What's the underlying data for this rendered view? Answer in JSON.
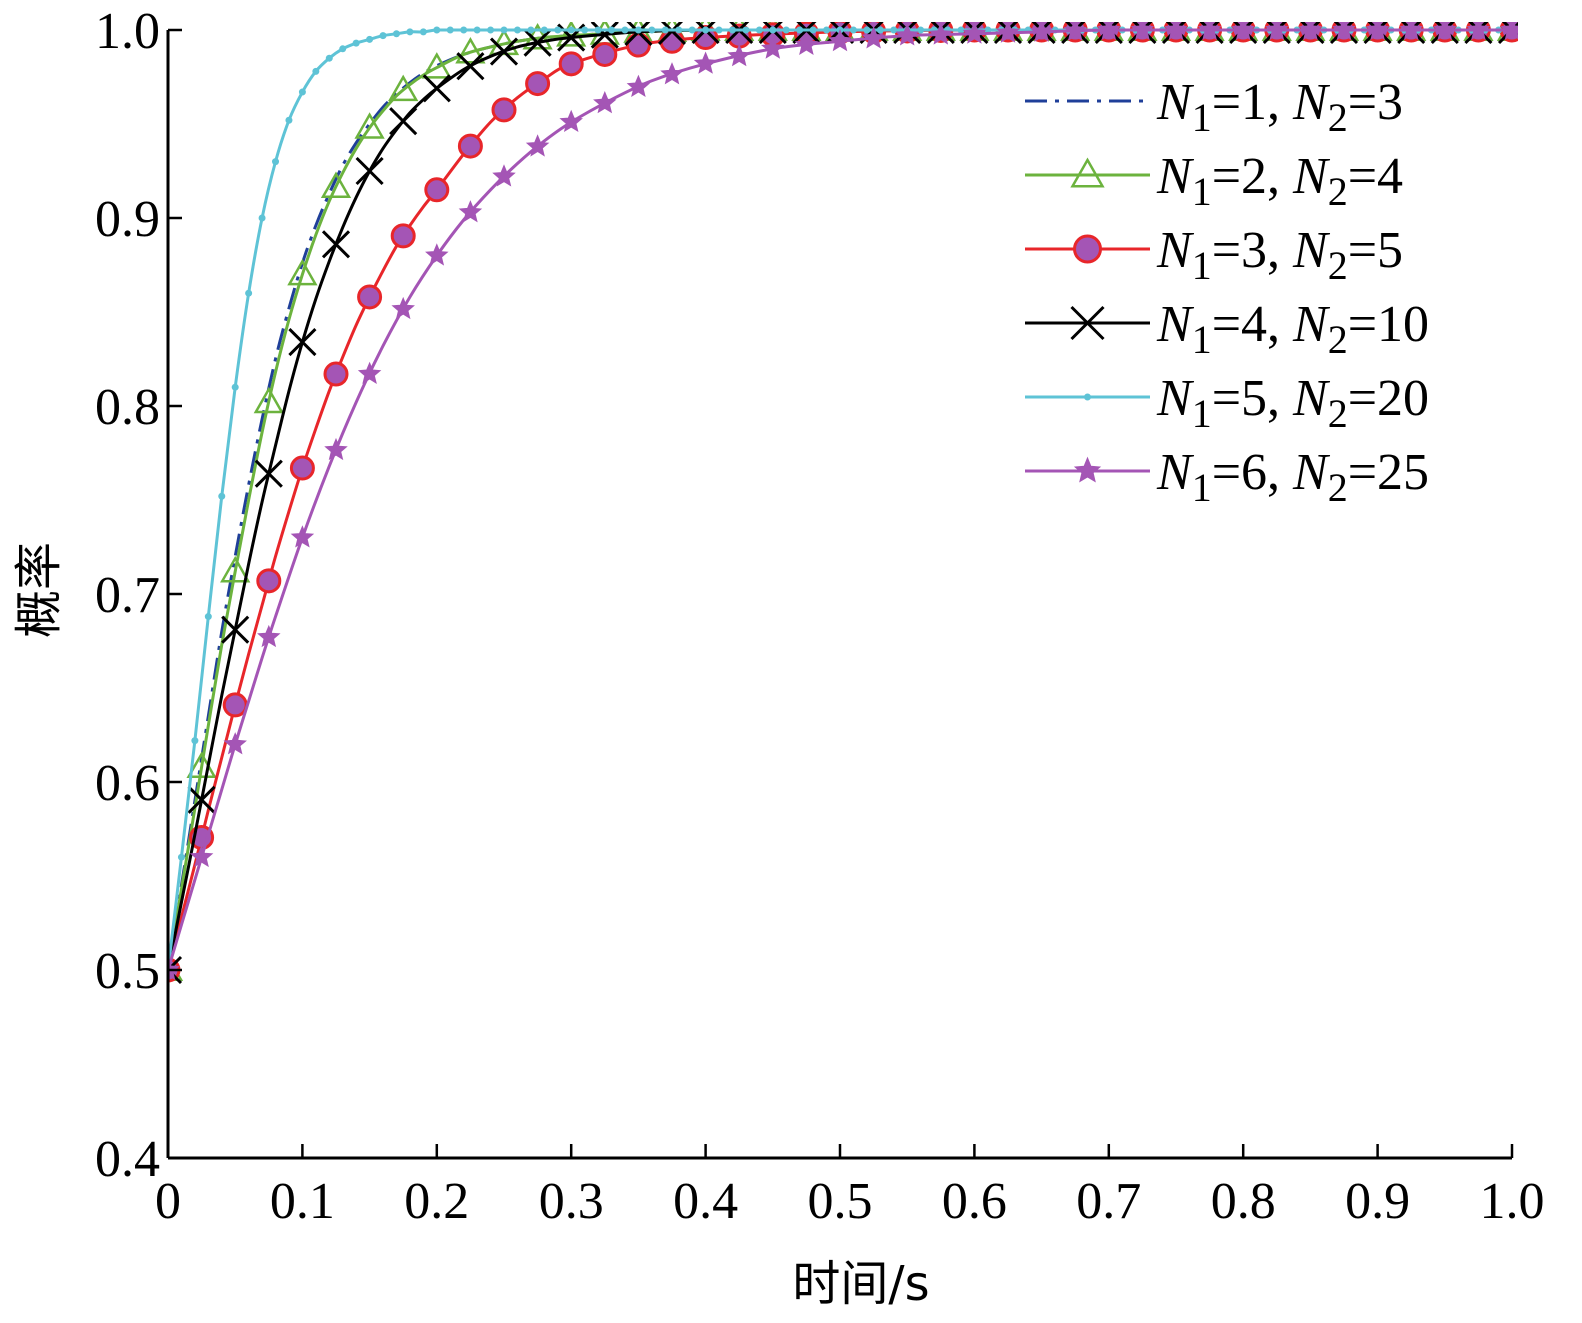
{
  "chart_data": {
    "type": "line",
    "title": "",
    "xlabel": "时间/s",
    "ylabel": "概率",
    "xlim": [
      0,
      1.0
    ],
    "ylim": [
      0.4,
      1.0
    ],
    "x_ticks": [
      "0",
      "0.1",
      "0.2",
      "0.3",
      "0.4",
      "0.5",
      "0.6",
      "0.7",
      "0.8",
      "0.9",
      "1.0"
    ],
    "y_ticks": [
      "0.4",
      "0.5",
      "0.6",
      "0.7",
      "0.8",
      "0.9",
      "1.0"
    ],
    "grid": false,
    "legend_position": "top-right",
    "series": [
      {
        "name": "N1=1, N2=3",
        "legend": {
          "n1": "1",
          "n2": "3"
        },
        "color": "#1f3f99",
        "line_style": "dashdot",
        "marker": "none",
        "x": [
          0,
          0.01,
          0.02,
          0.03,
          0.04,
          0.05,
          0.06,
          0.07,
          0.08,
          0.09,
          0.1,
          0.11,
          0.12,
          0.13,
          0.14,
          0.15,
          0.16,
          0.17,
          0.18,
          0.19,
          0.2,
          0.22,
          0.24,
          0.26,
          0.28,
          0.3,
          0.35,
          0.4,
          0.5,
          0.6,
          0.7,
          0.8,
          0.9,
          1.0
        ],
        "y": [
          0.5,
          0.545,
          0.59,
          0.635,
          0.68,
          0.72,
          0.758,
          0.793,
          0.825,
          0.852,
          0.876,
          0.896,
          0.913,
          0.928,
          0.94,
          0.95,
          0.959,
          0.966,
          0.972,
          0.977,
          0.981,
          0.987,
          0.991,
          0.994,
          0.996,
          0.997,
          0.999,
          1.0,
          1.0,
          1.0,
          1.0,
          1.0,
          1.0,
          1.0
        ]
      },
      {
        "name": "N1=2, N2=4",
        "legend": {
          "n1": "2",
          "n2": "4"
        },
        "color": "#6cb33e",
        "line_style": "solid",
        "marker": "triangle",
        "x": [
          0,
          0.01,
          0.02,
          0.03,
          0.04,
          0.05,
          0.06,
          0.07,
          0.08,
          0.09,
          0.1,
          0.11,
          0.12,
          0.13,
          0.14,
          0.15,
          0.16,
          0.17,
          0.18,
          0.19,
          0.2,
          0.22,
          0.24,
          0.26,
          0.28,
          0.3,
          0.35,
          0.4,
          0.5,
          0.6,
          0.7,
          0.8,
          0.9,
          1.0
        ],
        "y": [
          0.5,
          0.543,
          0.586,
          0.63,
          0.673,
          0.712,
          0.75,
          0.786,
          0.818,
          0.846,
          0.87,
          0.891,
          0.909,
          0.924,
          0.937,
          0.948,
          0.957,
          0.965,
          0.971,
          0.976,
          0.98,
          0.987,
          0.991,
          0.994,
          0.996,
          0.997,
          0.999,
          1.0,
          1.0,
          1.0,
          1.0,
          1.0,
          1.0,
          1.0
        ]
      },
      {
        "name": "N1=3, N2=5",
        "legend": {
          "n1": "3",
          "n2": "5"
        },
        "color": "#e8262a",
        "line_style": "solid",
        "marker": "circle",
        "x": [
          0,
          0.01,
          0.02,
          0.03,
          0.04,
          0.05,
          0.06,
          0.07,
          0.08,
          0.09,
          0.1,
          0.11,
          0.12,
          0.13,
          0.14,
          0.15,
          0.16,
          0.17,
          0.18,
          0.19,
          0.2,
          0.22,
          0.24,
          0.26,
          0.28,
          0.3,
          0.35,
          0.4,
          0.5,
          0.6,
          0.7,
          0.8,
          0.9,
          1.0
        ],
        "y": [
          0.5,
          0.528,
          0.556,
          0.585,
          0.613,
          0.641,
          0.668,
          0.694,
          0.72,
          0.744,
          0.767,
          0.788,
          0.808,
          0.826,
          0.843,
          0.858,
          0.872,
          0.885,
          0.896,
          0.906,
          0.915,
          0.934,
          0.951,
          0.964,
          0.974,
          0.982,
          0.992,
          0.996,
          0.999,
          1.0,
          1.0,
          1.0,
          1.0,
          1.0
        ]
      },
      {
        "name": "N1=4, N2=10",
        "legend": {
          "n1": "4",
          "n2": "10"
        },
        "color": "#000000",
        "line_style": "solid",
        "marker": "x",
        "x": [
          0,
          0.01,
          0.02,
          0.03,
          0.04,
          0.05,
          0.06,
          0.07,
          0.08,
          0.09,
          0.1,
          0.11,
          0.12,
          0.13,
          0.14,
          0.15,
          0.16,
          0.17,
          0.18,
          0.19,
          0.2,
          0.22,
          0.24,
          0.26,
          0.28,
          0.3,
          0.35,
          0.4,
          0.5,
          0.6,
          0.7,
          0.8,
          0.9,
          1.0
        ],
        "y": [
          0.5,
          0.536,
          0.572,
          0.609,
          0.646,
          0.681,
          0.716,
          0.749,
          0.779,
          0.808,
          0.834,
          0.857,
          0.877,
          0.895,
          0.911,
          0.925,
          0.937,
          0.947,
          0.956,
          0.963,
          0.969,
          0.979,
          0.986,
          0.991,
          0.994,
          0.996,
          0.999,
          1.0,
          1.0,
          1.0,
          1.0,
          1.0,
          1.0,
          1.0
        ]
      },
      {
        "name": "N1=5, N2=20",
        "legend": {
          "n1": "5",
          "n2": "20"
        },
        "color": "#5ec3d6",
        "line_style": "solid",
        "marker": "dot",
        "x": [
          0,
          0.01,
          0.02,
          0.03,
          0.04,
          0.05,
          0.06,
          0.07,
          0.08,
          0.09,
          0.1,
          0.11,
          0.12,
          0.13,
          0.14,
          0.15,
          0.16,
          0.17,
          0.18,
          0.19,
          0.2,
          0.22,
          0.24,
          0.26,
          0.28,
          0.3,
          0.35,
          0.4,
          0.5,
          0.6,
          0.7,
          0.8,
          0.9,
          1.0
        ],
        "y": [
          0.5,
          0.56,
          0.622,
          0.688,
          0.752,
          0.81,
          0.86,
          0.9,
          0.93,
          0.952,
          0.967,
          0.978,
          0.985,
          0.99,
          0.993,
          0.995,
          0.997,
          0.998,
          0.999,
          0.999,
          1.0,
          1.0,
          1.0,
          1.0,
          1.0,
          1.0,
          1.0,
          1.0,
          1.0,
          1.0,
          1.0,
          1.0,
          1.0,
          1.0
        ]
      },
      {
        "name": "N1=6, N2=25",
        "legend": {
          "n1": "6",
          "n2": "25"
        },
        "color": "#a455b5",
        "line_style": "solid",
        "marker": "star",
        "x": [
          0,
          0.01,
          0.02,
          0.03,
          0.04,
          0.05,
          0.06,
          0.07,
          0.08,
          0.1,
          0.12,
          0.14,
          0.16,
          0.18,
          0.2,
          0.22,
          0.24,
          0.26,
          0.28,
          0.3,
          0.33,
          0.36,
          0.4,
          0.45,
          0.5,
          0.55,
          0.6,
          0.65,
          0.7,
          0.75,
          0.8,
          0.85,
          0.9,
          0.95,
          1.0
        ],
        "y": [
          0.5,
          0.524,
          0.548,
          0.572,
          0.596,
          0.62,
          0.643,
          0.666,
          0.688,
          0.73,
          0.768,
          0.802,
          0.832,
          0.858,
          0.88,
          0.899,
          0.915,
          0.929,
          0.941,
          0.951,
          0.963,
          0.973,
          0.982,
          0.99,
          0.994,
          0.997,
          0.998,
          0.999,
          1.0,
          1.0,
          1.0,
          1.0,
          1.0,
          1.0,
          1.0
        ]
      }
    ]
  }
}
